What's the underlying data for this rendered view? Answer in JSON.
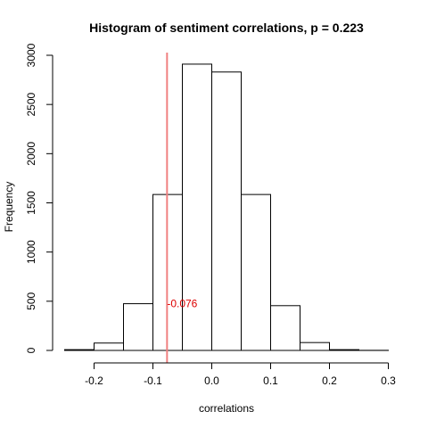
{
  "chart_data": {
    "type": "bar",
    "title": "Histogram of sentiment correlations, p = 0.223",
    "xlabel": "correlations",
    "ylabel": "Frequency",
    "xlim": [
      -0.25,
      0.3
    ],
    "ylim": [
      0,
      3000
    ],
    "bin_width": 0.05,
    "bins": [
      {
        "start": -0.25,
        "end": -0.2,
        "value": 8
      },
      {
        "start": -0.2,
        "end": -0.15,
        "value": 75
      },
      {
        "start": -0.15,
        "end": -0.1,
        "value": 475
      },
      {
        "start": -0.1,
        "end": -0.05,
        "value": 1585
      },
      {
        "start": -0.05,
        "end": 0.0,
        "value": 2910
      },
      {
        "start": 0.0,
        "end": 0.05,
        "value": 2830
      },
      {
        "start": 0.05,
        "end": 0.1,
        "value": 1585
      },
      {
        "start": 0.1,
        "end": 0.15,
        "value": 455
      },
      {
        "start": 0.15,
        "end": 0.2,
        "value": 80
      },
      {
        "start": 0.2,
        "end": 0.25,
        "value": 8
      },
      {
        "start": 0.25,
        "end": 0.3,
        "value": 1
      }
    ],
    "x_ticks": [
      -0.2,
      -0.1,
      0.0,
      0.1,
      0.2,
      0.3
    ],
    "x_tick_labels": [
      "-0.2",
      "-0.1",
      "0.0",
      "0.1",
      "0.2",
      "0.3"
    ],
    "y_ticks": [
      0,
      500,
      1000,
      1500,
      2000,
      2500,
      3000
    ],
    "y_tick_labels": [
      "0",
      "500",
      "1000",
      "1500",
      "2000",
      "2500",
      "3000"
    ],
    "reference_line": {
      "x": -0.076,
      "label": "-0.076",
      "label_y": 475,
      "color": "#f08080",
      "label_color": "#dd0000"
    },
    "bar_fill": "#ffffff",
    "bar_stroke": "#000000",
    "grid": false
  }
}
